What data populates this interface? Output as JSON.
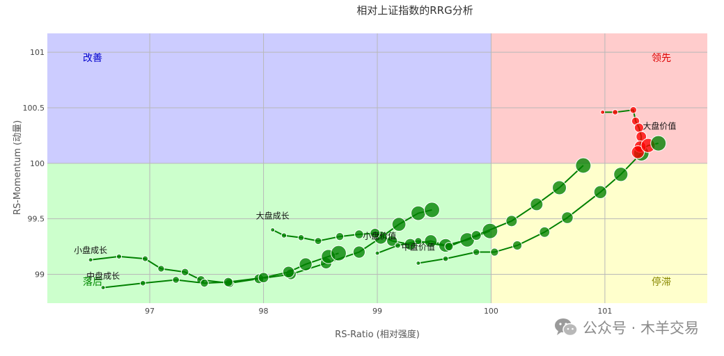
{
  "chart_data": {
    "type": "scatter",
    "title": "相对上证指数的RRG分析",
    "xlabel": "RS-Ratio (相对强度)",
    "ylabel": "RS-Momentum (动量)",
    "xlim": [
      96.1,
      101.9
    ],
    "ylim": [
      98.74,
      101.17
    ],
    "x_ticks": [
      97,
      98,
      99,
      100,
      101
    ],
    "x_tick_labels": [
      "97",
      "98",
      "99",
      "100",
      "101"
    ],
    "y_ticks": [
      99,
      99.5,
      100,
      100.5,
      101
    ],
    "y_tick_labels": [
      "99",
      "99.5",
      "100",
      "100.5",
      "101"
    ],
    "grid": true,
    "center": [
      100,
      100
    ],
    "quadrants": [
      {
        "name": "改善",
        "color": "#ccccff",
        "text_color": "#0000cc"
      },
      {
        "name": "领先",
        "color": "#ffcccc",
        "text_color": "#dd0000"
      },
      {
        "name": "落后",
        "color": "#ccffcc",
        "text_color": "#008800"
      },
      {
        "name": "停滞",
        "color": "#ffffcc",
        "text_color": "#888800"
      }
    ],
    "trail_color": "#008000",
    "leading_color": "#ff0000",
    "series": [
      {
        "name": "小盘成长",
        "x": [
          96.48,
          96.73,
          96.96,
          97.1,
          97.31,
          97.45,
          97.7,
          97.96,
          98.24,
          98.55,
          98.84,
          99.03,
          99.19,
          99.36,
          99.48
        ],
        "y": [
          99.13,
          99.16,
          99.14,
          99.05,
          99.02,
          98.95,
          98.92,
          98.96,
          99.0,
          99.1,
          99.2,
          99.33,
          99.45,
          99.55,
          99.58
        ]
      },
      {
        "name": "中盘成长",
        "x": [
          96.59,
          96.94,
          97.23,
          97.48,
          97.69,
          98.0,
          98.22,
          98.37,
          98.57,
          98.66
        ],
        "y": [
          98.88,
          98.92,
          98.95,
          98.92,
          98.93,
          98.97,
          99.02,
          99.09,
          99.16,
          99.19
        ]
      },
      {
        "name": "大盘成长",
        "x": [
          98.08,
          98.18,
          98.33,
          98.48,
          98.67,
          98.84,
          98.98,
          99.13,
          99.29,
          99.47,
          99.6,
          99.79,
          99.99
        ],
        "y": [
          99.4,
          99.35,
          99.33,
          99.3,
          99.34,
          99.36,
          99.37,
          99.3,
          99.27,
          99.3,
          99.26,
          99.31,
          99.39
        ]
      },
      {
        "name": "小盘价值",
        "x": [
          99.0,
          99.18,
          99.36,
          99.63,
          99.87,
          100.18,
          100.4,
          100.6,
          100.81
        ],
        "y": [
          99.19,
          99.26,
          99.3,
          99.25,
          99.35,
          99.48,
          99.63,
          99.78,
          99.98
        ]
      },
      {
        "name": "中盘价值",
        "x": [
          99.36,
          99.6,
          99.87,
          100.03,
          100.23,
          100.47,
          100.67,
          100.96,
          101.14,
          101.32
        ],
        "y": [
          99.1,
          99.14,
          99.2,
          99.2,
          99.26,
          99.38,
          99.51,
          99.74,
          99.9,
          100.09
        ]
      },
      {
        "name": "大盘价值",
        "x": [
          100.98,
          101.09,
          101.25,
          101.27,
          101.3,
          101.32,
          101.31,
          101.29,
          101.38,
          101.47
        ],
        "y": [
          100.46,
          100.46,
          100.48,
          100.38,
          100.32,
          100.24,
          100.15,
          100.1,
          100.16,
          100.18
        ],
        "highlight": true
      }
    ],
    "series_label_positions": {
      "小盘成长": [
        96.48,
        99.19
      ],
      "中盘成长": [
        96.59,
        98.96
      ],
      "大盘成长": [
        98.08,
        99.5
      ],
      "小盘价值": [
        99.02,
        99.32
      ],
      "中盘价值": [
        99.36,
        99.22
      ],
      "大盘价值": [
        101.48,
        100.31
      ]
    }
  },
  "watermark": {
    "text": "公众号 · 木羊交易",
    "icon": "wechat-icon"
  }
}
